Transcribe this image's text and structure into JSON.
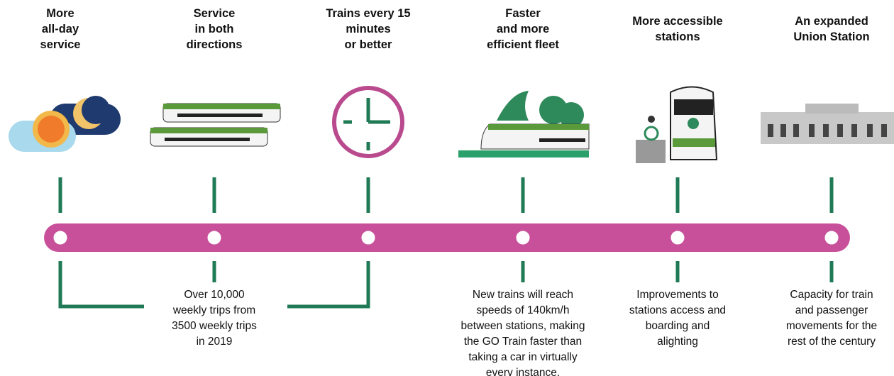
{
  "items": [
    {
      "title": [
        "More",
        "all-day",
        "service"
      ],
      "description": []
    },
    {
      "title": [
        "Service",
        "in both",
        "directions"
      ],
      "description": [
        "Over 10,000",
        "weekly trips from",
        "3500 weekly trips",
        "in 2019"
      ]
    },
    {
      "title": [
        "Trains every 15",
        "minutes",
        "or better"
      ],
      "description": []
    },
    {
      "title": [
        "Faster",
        "and more",
        "efficient fleet"
      ],
      "description": [
        "New trains will reach",
        "speeds of 140km/h",
        "between stations, making",
        "the GO Train faster than",
        "taking a car in virtually",
        "every instance."
      ]
    },
    {
      "title": [
        "More accessible",
        "stations"
      ],
      "description": [
        "Improvements to",
        "stations access and",
        "boarding and",
        "alighting"
      ]
    },
    {
      "title": [
        "An expanded",
        "Union Station"
      ],
      "description": [
        "Capacity for train",
        "and passenger",
        "movements for the",
        "rest of the century"
      ]
    }
  ]
}
